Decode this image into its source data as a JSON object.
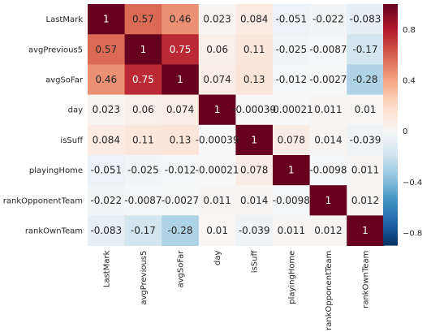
{
  "chart_data": {
    "type": "heatmap",
    "title": "",
    "xlabel": "",
    "ylabel": "",
    "rows": [
      "LastMark",
      "avgPrevious5",
      "avgSoFar",
      "day",
      "isSuff",
      "playingHome",
      "rankOpponentTeam",
      "rankOwnTeam"
    ],
    "columns": [
      "LastMark",
      "avgPrevious5",
      "avgSoFar",
      "day",
      "isSuff",
      "playingHome",
      "rankOpponentTeam",
      "rankOwnTeam"
    ],
    "values": [
      [
        1,
        0.57,
        0.46,
        0.023,
        0.084,
        -0.051,
        -0.022,
        -0.083
      ],
      [
        0.57,
        1,
        0.75,
        0.06,
        0.11,
        -0.025,
        -0.0087,
        -0.17
      ],
      [
        0.46,
        0.75,
        1,
        0.074,
        0.13,
        -0.012,
        -0.0027,
        -0.28
      ],
      [
        0.023,
        0.06,
        0.074,
        1,
        -0.00039,
        -0.00021,
        0.011,
        0.01
      ],
      [
        0.084,
        0.11,
        0.13,
        -0.00039,
        1,
        0.078,
        0.014,
        -0.039
      ],
      [
        -0.051,
        -0.025,
        -0.012,
        -0.00021,
        0.078,
        1,
        -0.0098,
        0.011
      ],
      [
        -0.022,
        -0.0087,
        -0.0027,
        0.011,
        0.014,
        -0.0098,
        1,
        0.012
      ],
      [
        -0.083,
        -0.17,
        -0.28,
        0.01,
        -0.039,
        0.011,
        0.012,
        1
      ]
    ],
    "labels": [
      [
        "1",
        "0.57",
        "0.46",
        "0.023",
        "0.084",
        "-0.051",
        "-0.022",
        "-0.083"
      ],
      [
        "0.57",
        "1",
        "0.75",
        "0.06",
        "0.11",
        "-0.025",
        "-0.0087",
        "-0.17"
      ],
      [
        "0.46",
        "0.75",
        "1",
        "0.074",
        "0.13",
        "-0.012",
        "-0.0027",
        "-0.28"
      ],
      [
        "0.023",
        "0.06",
        "0.074",
        "1",
        "-0.00039",
        "-0.00021",
        "0.011",
        "0.01"
      ],
      [
        "0.084",
        "0.11",
        "0.13",
        "-0.00039",
        "1",
        "0.078",
        "0.014",
        "-0.039"
      ],
      [
        "-0.051",
        "-0.025",
        "-0.012",
        "-0.00021",
        "0.078",
        "1",
        "-0.0098",
        "0.011"
      ],
      [
        "-0.022",
        "-0.0087",
        "-0.0027",
        "0.011",
        "0.014",
        "-0.0098",
        "1",
        "0.012"
      ],
      [
        "-0.083",
        "-0.17",
        "-0.28",
        "0.01",
        "-0.039",
        "0.011",
        "0.012",
        "1"
      ]
    ],
    "colorscale": {
      "name": "RdBu_r",
      "vmin": -0.9,
      "vmax": 1.0,
      "center": 0,
      "ticks": [
        -0.8,
        -0.4,
        0,
        0.4,
        0.8
      ],
      "tick_labels": [
        "−0.8",
        "−0.4",
        "0",
        "0.4",
        "0.8"
      ]
    },
    "grid": false,
    "colorbar_position": "right"
  }
}
